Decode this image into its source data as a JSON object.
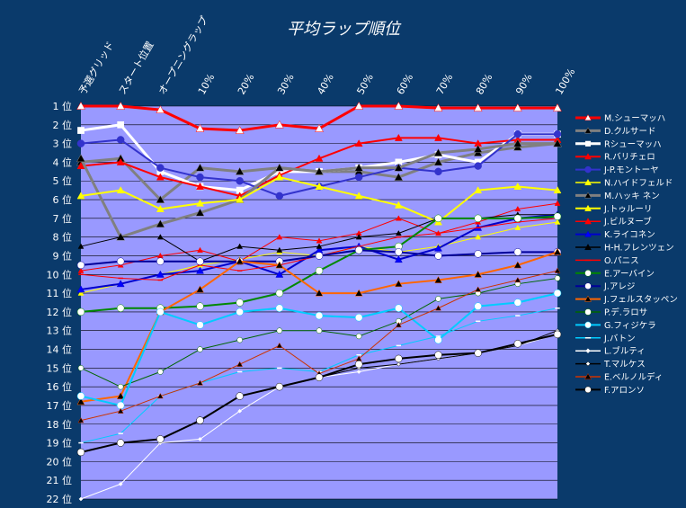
{
  "chart_data": {
    "type": "line",
    "title": "平均ラップ順位",
    "xlabel": "",
    "ylabel": "",
    "background": "#0a3a6b",
    "plot_background": "#9999ff",
    "categories": [
      "予選グリッド",
      "スタート位置",
      "オープニングラップ",
      "10%",
      "20%",
      "30%",
      "40%",
      "50%",
      "60%",
      "70%",
      "80%",
      "90%",
      "100%"
    ],
    "y_ticks": [
      "1 位",
      "2 位",
      "3 位",
      "4 位",
      "5 位",
      "6 位",
      "7 位",
      "8 位",
      "9 位",
      "10 位",
      "11 位",
      "12 位",
      "13 位",
      "14 位",
      "15 位",
      "16 位",
      "17 位",
      "18 位",
      "19 位",
      "20 位",
      "21 位",
      "22 位"
    ],
    "ylim": [
      1,
      22
    ],
    "y_inverted": true,
    "grid": true,
    "legend_position": "right",
    "series": [
      {
        "name": "M.シューマッハ",
        "color": "#ff0000",
        "marker": "triangle",
        "marker_color": "#ffffff",
        "width": 3,
        "values": [
          1.0,
          1.0,
          1.2,
          2.2,
          2.3,
          2.0,
          2.2,
          1.0,
          1.0,
          1.1,
          1.1,
          1.1,
          1.1
        ]
      },
      {
        "name": "D.クルサード",
        "color": "#808080",
        "marker": "triangle",
        "marker_color": "#000000",
        "width": 3,
        "values": [
          4.0,
          3.8,
          6.0,
          4.3,
          4.5,
          4.3,
          4.5,
          4.5,
          4.8,
          4.0,
          3.5,
          3.2,
          3.0
        ]
      },
      {
        "name": "Rシューマッハ",
        "color": "#ffffff",
        "marker": "square",
        "marker_color": "#ffffff",
        "width": 3,
        "values": [
          2.3,
          2.0,
          4.5,
          5.3,
          5.5,
          4.5,
          4.5,
          4.3,
          4.0,
          3.6,
          4.0,
          2.5,
          2.5
        ]
      },
      {
        "name": "R.バリチェロ",
        "color": "#ff0000",
        "marker": "triangle",
        "marker_color": "#ff0000",
        "width": 2,
        "values": [
          4.2,
          4.0,
          4.8,
          5.3,
          5.8,
          4.7,
          3.8,
          3.0,
          2.7,
          2.7,
          3.0,
          2.8,
          2.8
        ]
      },
      {
        "name": "J-P.モントーヤ",
        "color": "#3333cc",
        "marker": "circle",
        "marker_color": "#3333cc",
        "width": 2,
        "values": [
          3.0,
          2.8,
          4.3,
          4.8,
          5.0,
          5.8,
          5.3,
          4.8,
          4.3,
          4.5,
          4.2,
          2.5,
          2.5
        ]
      },
      {
        "name": "N.ハイドフェルド",
        "color": "#ffff00",
        "marker": "triangle",
        "marker_color": "#ffff00",
        "width": 1,
        "values": [
          11.0,
          10.5,
          10.0,
          9.5,
          9.2,
          8.8,
          9.0,
          8.5,
          8.8,
          8.5,
          8.0,
          7.5,
          7.2
        ]
      },
      {
        "name": "M.ハッキ ネン",
        "color": "#808080",
        "marker": "triangle",
        "marker_color": "#000000",
        "width": 3,
        "values": [
          3.8,
          8.0,
          7.3,
          6.7,
          6.0,
          4.3,
          4.5,
          4.3,
          4.3,
          3.5,
          3.3,
          3.0,
          3.0
        ]
      },
      {
        "name": "J.トゥルーリ",
        "color": "#ffff00",
        "marker": "triangle",
        "marker_color": "#ffff00",
        "width": 2,
        "values": [
          5.8,
          5.5,
          6.5,
          6.2,
          6.0,
          4.8,
          5.3,
          5.8,
          6.3,
          7.2,
          5.5,
          5.3,
          5.5
        ]
      },
      {
        "name": "J.ビルヌーブ",
        "color": "#ff0000",
        "marker": "triangle",
        "marker_color": "#ff0000",
        "width": 1,
        "values": [
          9.8,
          9.5,
          9.0,
          8.7,
          9.3,
          8.0,
          8.2,
          7.8,
          7.0,
          7.8,
          7.2,
          6.5,
          6.2
        ]
      },
      {
        "name": "K.ライコネン",
        "color": "#0000cc",
        "marker": "triangle",
        "marker_color": "#0000ff",
        "width": 2,
        "values": [
          10.8,
          10.5,
          10.0,
          9.8,
          9.3,
          10.0,
          8.7,
          8.5,
          9.2,
          8.6,
          7.5,
          7.0,
          6.8
        ]
      },
      {
        "name": "H-H.フレンツェン",
        "color": "#000000",
        "marker": "triangle",
        "marker_color": "#000000",
        "width": 1,
        "values": [
          8.5,
          8.0,
          8.0,
          9.3,
          8.5,
          8.7,
          8.5,
          8.0,
          7.8,
          7.0,
          7.0,
          6.8,
          6.8
        ]
      },
      {
        "name": "O.パニス",
        "color": "#ff0000",
        "marker": "line",
        "marker_color": "#ff0000",
        "width": 1,
        "values": [
          10.0,
          10.2,
          10.3,
          9.5,
          9.8,
          9.5,
          9.0,
          8.5,
          8.0,
          7.8,
          7.5,
          7.2,
          7.0
        ]
      },
      {
        "name": "E.アーバイン",
        "color": "#008800",
        "marker": "circle",
        "marker_color": "#ffffff",
        "width": 2,
        "values": [
          12.0,
          11.8,
          11.8,
          11.7,
          11.5,
          11.0,
          9.8,
          8.7,
          8.5,
          7.0,
          7.0,
          7.0,
          6.9
        ]
      },
      {
        "name": "J.アレジ",
        "color": "#000099",
        "marker": "circle",
        "marker_color": "#ffffff",
        "width": 2,
        "values": [
          9.5,
          9.3,
          9.3,
          9.3,
          9.3,
          9.3,
          9.0,
          8.7,
          8.8,
          9.0,
          8.9,
          8.8,
          8.8
        ]
      },
      {
        "name": "J.フェルスタッペン",
        "color": "#ff6600",
        "marker": "triangle",
        "marker_color": "#000000",
        "width": 2,
        "values": [
          16.8,
          16.5,
          12.0,
          10.8,
          9.3,
          9.5,
          11.0,
          11.0,
          10.5,
          10.3,
          10.0,
          9.5,
          8.8
        ]
      },
      {
        "name": "P.デ.ラロサ",
        "color": "#006600",
        "marker": "circle",
        "marker_color": "#ffffff",
        "width": 1,
        "values": [
          15.0,
          16.0,
          15.2,
          14.0,
          13.5,
          13.0,
          13.0,
          13.3,
          12.5,
          11.3,
          11.0,
          10.5,
          10.2
        ]
      },
      {
        "name": "G.フィジケラ",
        "color": "#00ccff",
        "marker": "circle",
        "marker_color": "#ffffff",
        "width": 2,
        "values": [
          16.5,
          17.0,
          12.0,
          12.7,
          12.0,
          11.8,
          12.2,
          12.3,
          11.8,
          13.5,
          11.7,
          11.5,
          11.0
        ]
      },
      {
        "name": "J.バトン",
        "color": "#00ccff",
        "marker": "line",
        "marker_color": "#ffffff",
        "width": 1,
        "values": [
          19.0,
          18.5,
          16.5,
          15.8,
          15.2,
          15.0,
          15.2,
          14.3,
          13.8,
          13.3,
          12.5,
          12.2,
          11.8
        ]
      },
      {
        "name": "L.ブルティ",
        "color": "#ffffff",
        "marker": "diamond",
        "marker_color": "#ffffff",
        "width": 1,
        "values": [
          22.0,
          21.2,
          19.0,
          18.8,
          17.3,
          16.0,
          15.5,
          15.2,
          14.8,
          14.5,
          14.2,
          13.8,
          13.2
        ]
      },
      {
        "name": "T.マルケス",
        "color": "#000000",
        "marker": "diamond",
        "marker_color": "#ffffff",
        "width": 1,
        "values": [
          19.5,
          19.0,
          18.8,
          17.8,
          16.5,
          16.0,
          15.5,
          15.0,
          14.8,
          14.5,
          14.2,
          13.8,
          13.0
        ]
      },
      {
        "name": "E.ベルノルディ",
        "color": "#cc3300",
        "marker": "triangle",
        "marker_color": "#000000",
        "width": 1,
        "values": [
          17.8,
          17.3,
          16.5,
          15.8,
          14.8,
          13.8,
          15.3,
          14.5,
          12.7,
          11.8,
          10.8,
          10.3,
          9.8
        ]
      },
      {
        "name": "F.アロンソ",
        "color": "#000000",
        "marker": "circle",
        "marker_color": "#ffffff",
        "width": 2,
        "values": [
          19.5,
          19.0,
          18.8,
          17.8,
          16.5,
          16.0,
          15.5,
          14.8,
          14.5,
          14.3,
          14.2,
          13.7,
          13.2
        ]
      }
    ]
  }
}
